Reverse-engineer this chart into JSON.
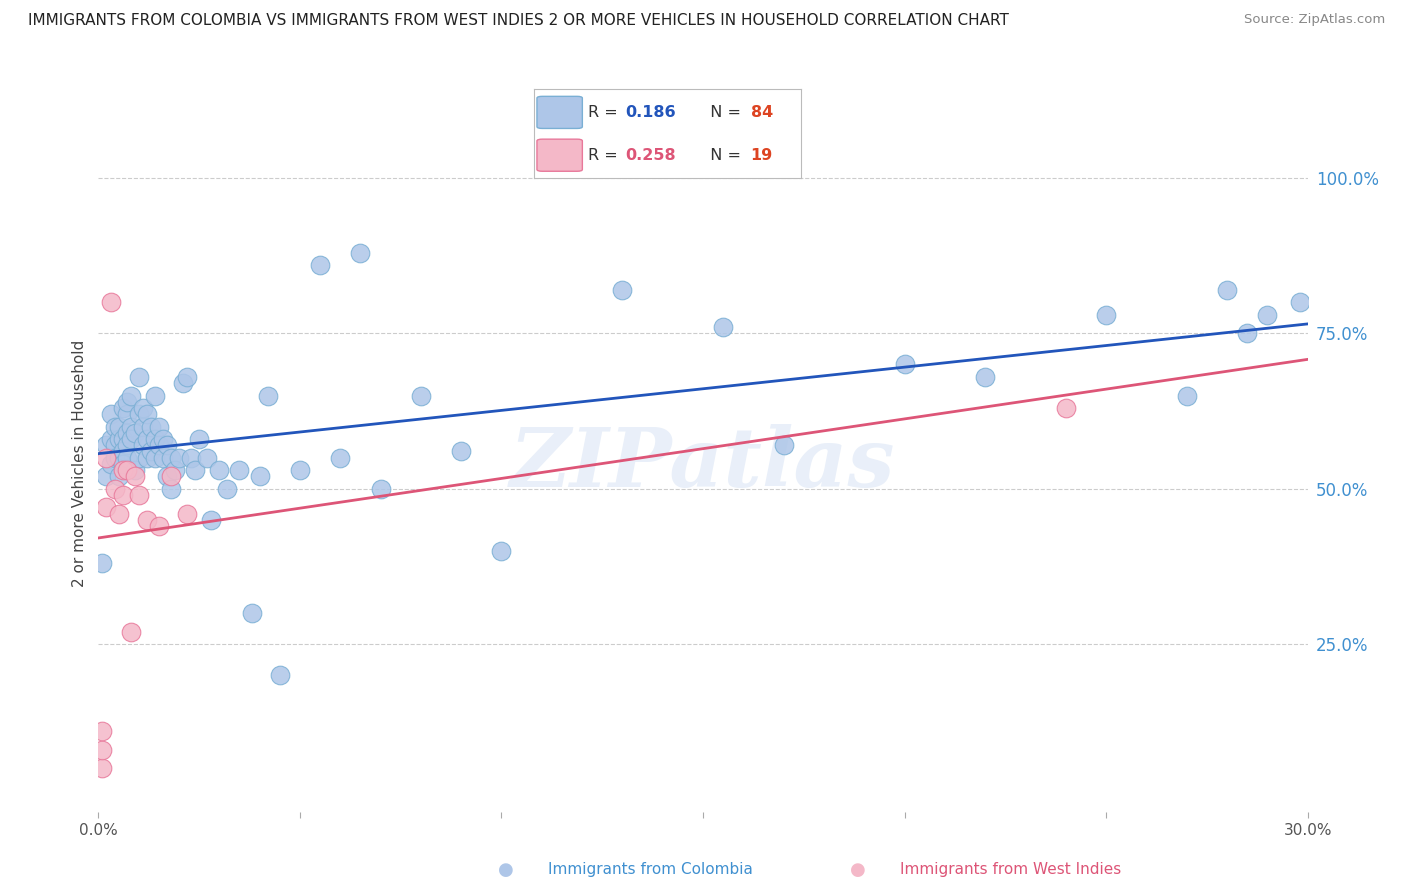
{
  "title": "IMMIGRANTS FROM COLOMBIA VS IMMIGRANTS FROM WEST INDIES 2 OR MORE VEHICLES IN HOUSEHOLD CORRELATION CHART",
  "source": "Source: ZipAtlas.com",
  "ylabel": "2 or more Vehicles in Household",
  "right_yticks": [
    "100.0%",
    "75.0%",
    "50.0%",
    "25.0%"
  ],
  "right_ytick_vals": [
    1.0,
    0.75,
    0.5,
    0.25
  ],
  "xlim": [
    0.0,
    0.3
  ],
  "ylim": [
    -0.02,
    1.1
  ],
  "colombia_color": "#aec6e8",
  "colombia_edge": "#7aafd4",
  "westindies_color": "#f4b8c8",
  "westindies_edge": "#e8789a",
  "line_colombia": "#2255bb",
  "line_westindies": "#dd5577",
  "R_colombia": 0.186,
  "N_colombia": 84,
  "R_westindies": 0.258,
  "N_westindies": 19,
  "colombia_x": [
    0.001,
    0.002,
    0.002,
    0.003,
    0.003,
    0.003,
    0.004,
    0.004,
    0.004,
    0.005,
    0.005,
    0.005,
    0.005,
    0.006,
    0.006,
    0.006,
    0.006,
    0.007,
    0.007,
    0.007,
    0.007,
    0.007,
    0.008,
    0.008,
    0.008,
    0.009,
    0.009,
    0.01,
    0.01,
    0.01,
    0.011,
    0.011,
    0.011,
    0.012,
    0.012,
    0.012,
    0.013,
    0.013,
    0.014,
    0.014,
    0.014,
    0.015,
    0.015,
    0.016,
    0.016,
    0.017,
    0.017,
    0.018,
    0.018,
    0.019,
    0.02,
    0.021,
    0.022,
    0.023,
    0.024,
    0.025,
    0.027,
    0.028,
    0.03,
    0.032,
    0.035,
    0.038,
    0.04,
    0.042,
    0.045,
    0.05,
    0.055,
    0.06,
    0.065,
    0.07,
    0.08,
    0.09,
    0.1,
    0.13,
    0.155,
    0.17,
    0.2,
    0.22,
    0.25,
    0.27,
    0.28,
    0.285,
    0.29,
    0.298
  ],
  "colombia_y": [
    0.38,
    0.57,
    0.52,
    0.58,
    0.62,
    0.54,
    0.57,
    0.6,
    0.55,
    0.58,
    0.6,
    0.55,
    0.52,
    0.58,
    0.56,
    0.63,
    0.54,
    0.59,
    0.62,
    0.57,
    0.64,
    0.55,
    0.6,
    0.58,
    0.65,
    0.59,
    0.53,
    0.62,
    0.68,
    0.55,
    0.63,
    0.6,
    0.57,
    0.62,
    0.58,
    0.55,
    0.6,
    0.56,
    0.65,
    0.58,
    0.55,
    0.6,
    0.57,
    0.58,
    0.55,
    0.57,
    0.52,
    0.55,
    0.5,
    0.53,
    0.55,
    0.67,
    0.68,
    0.55,
    0.53,
    0.58,
    0.55,
    0.45,
    0.53,
    0.5,
    0.53,
    0.3,
    0.52,
    0.65,
    0.2,
    0.53,
    0.86,
    0.55,
    0.88,
    0.5,
    0.65,
    0.56,
    0.4,
    0.82,
    0.76,
    0.57,
    0.7,
    0.68,
    0.78,
    0.65,
    0.82,
    0.75,
    0.78,
    0.8
  ],
  "westindies_x": [
    0.001,
    0.001,
    0.001,
    0.002,
    0.002,
    0.003,
    0.004,
    0.005,
    0.006,
    0.006,
    0.007,
    0.008,
    0.009,
    0.01,
    0.012,
    0.015,
    0.018,
    0.022,
    0.24
  ],
  "westindies_y": [
    0.05,
    0.08,
    0.11,
    0.47,
    0.55,
    0.8,
    0.5,
    0.46,
    0.53,
    0.49,
    0.53,
    0.27,
    0.52,
    0.49,
    0.45,
    0.44,
    0.52,
    0.46,
    0.63
  ],
  "watermark": "ZIPatlas",
  "background_color": "#ffffff",
  "grid_color": "#cccccc"
}
